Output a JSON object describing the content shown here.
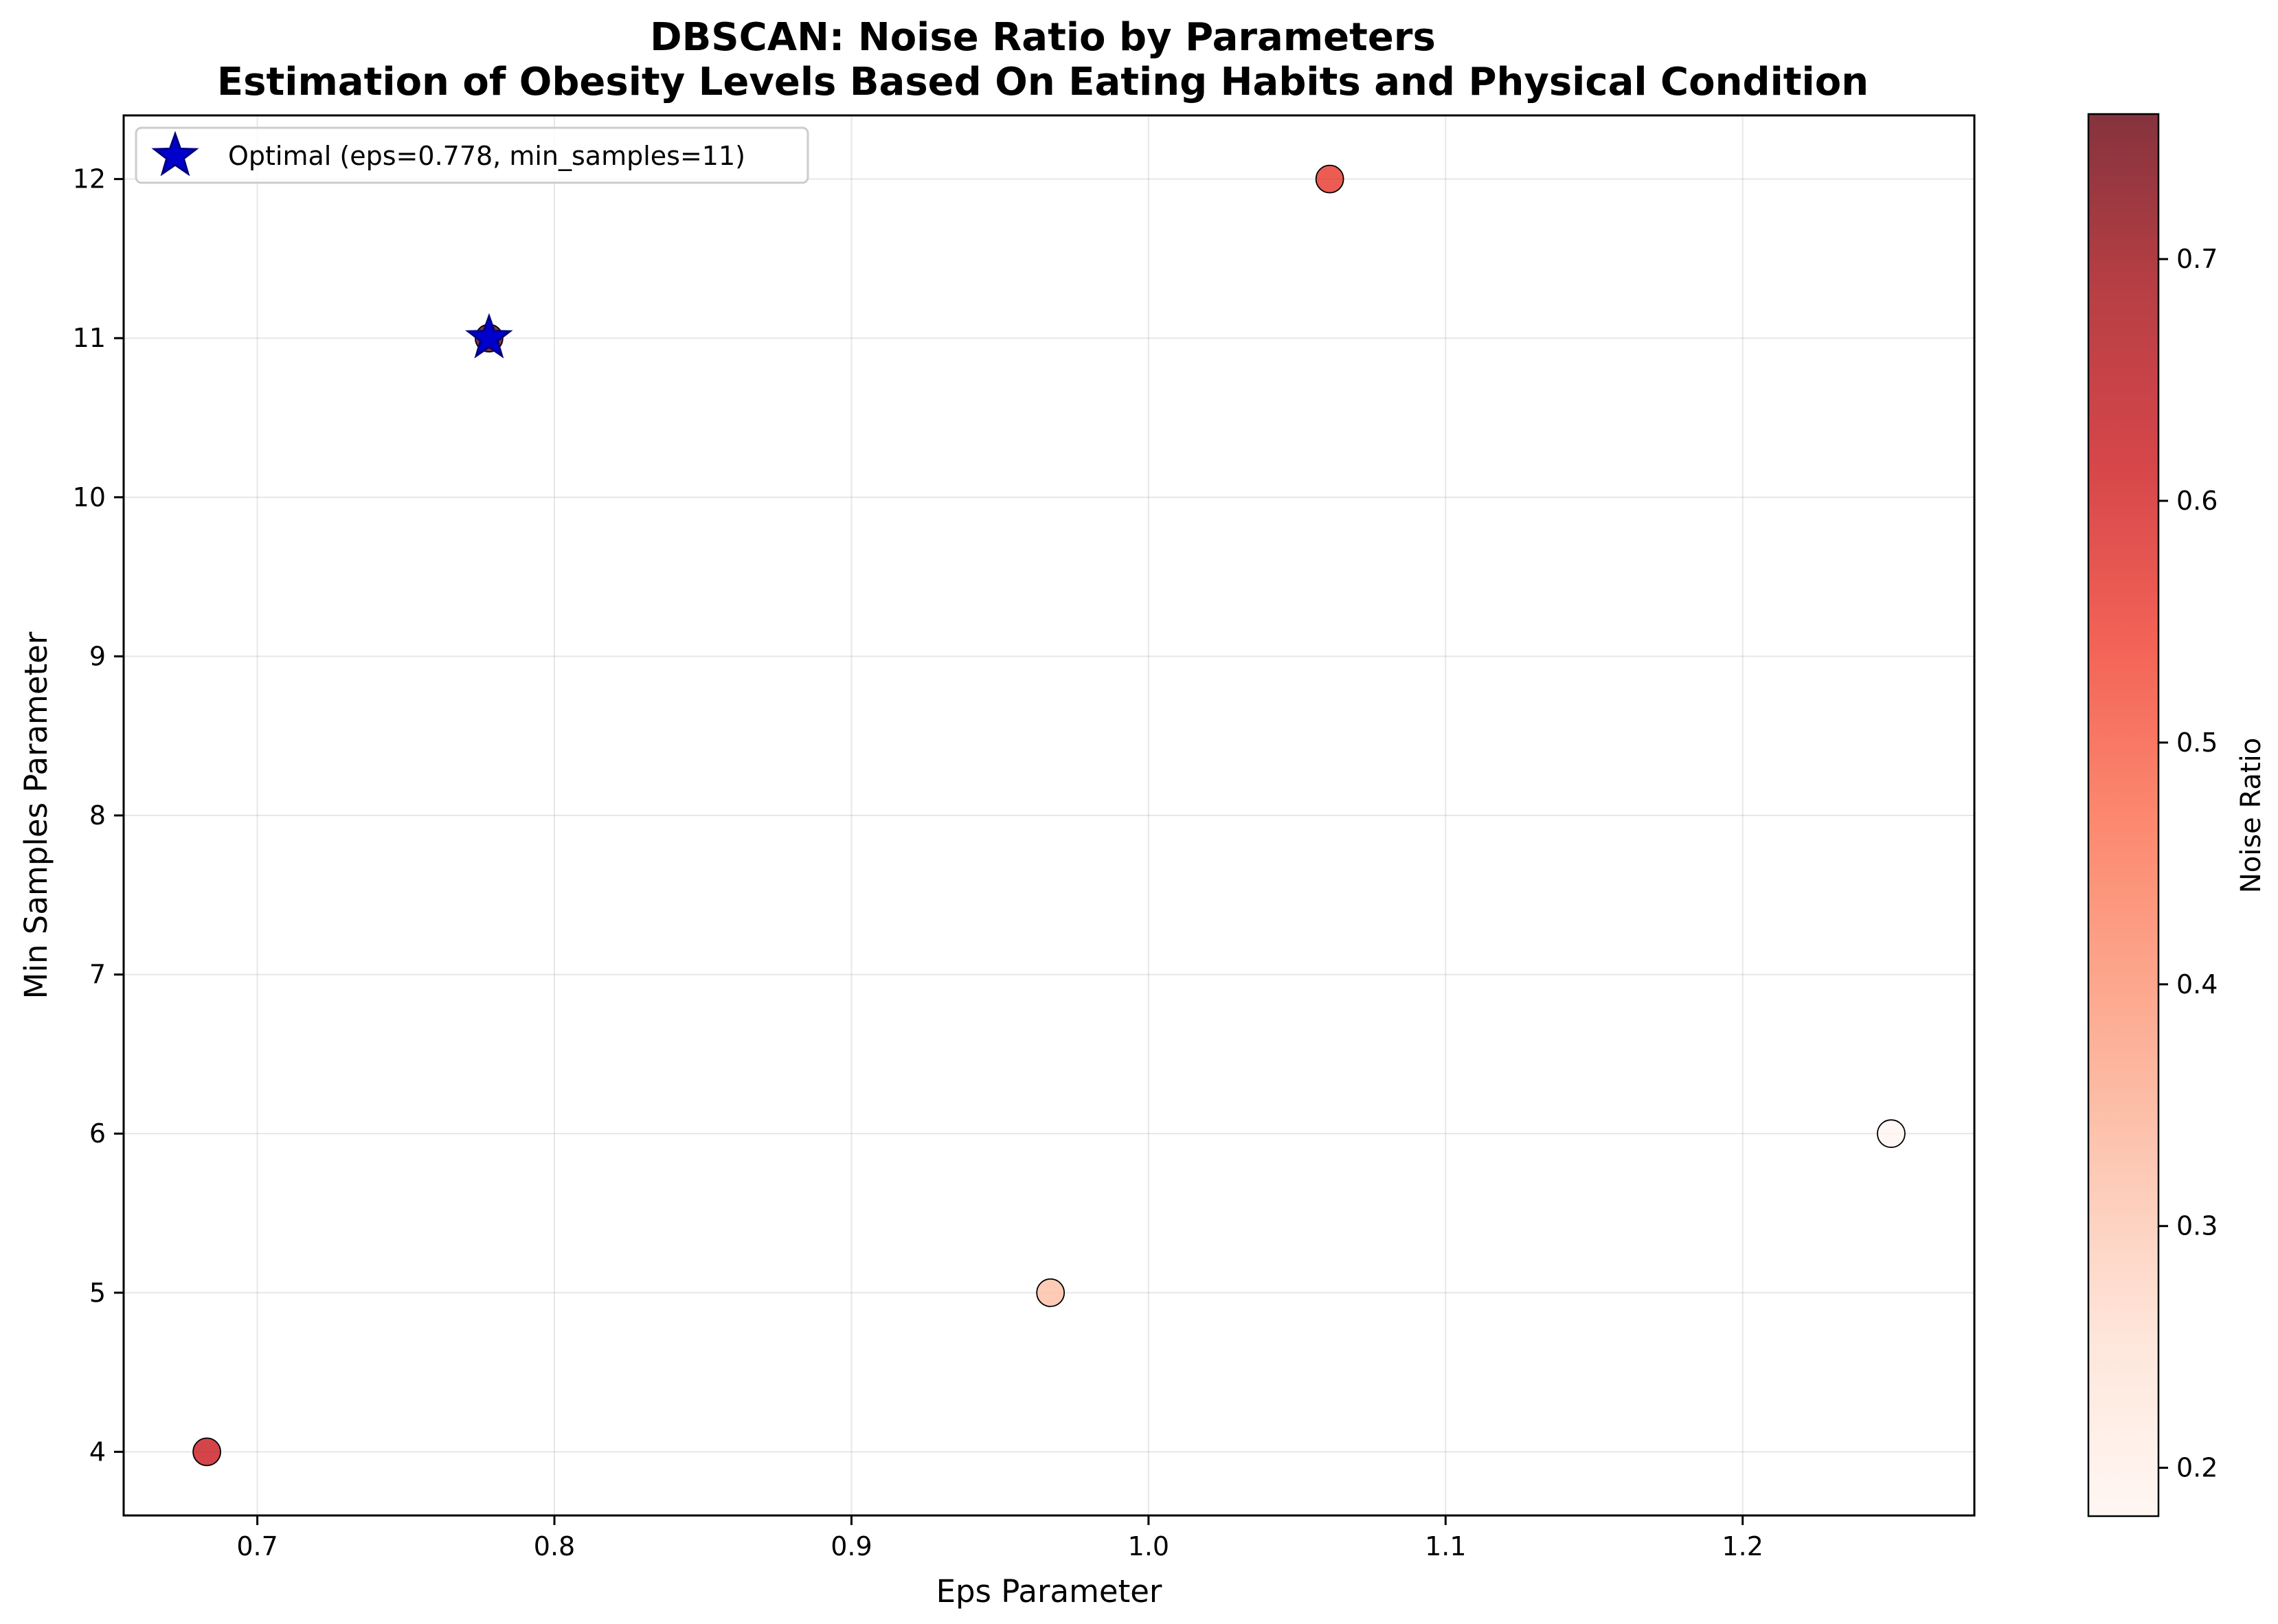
{
  "chart_data": {
    "type": "scatter",
    "title": "DBSCAN: Noise Ratio by Parameters",
    "subtitle": "Estimation of Obesity Levels Based On Eating Habits and Physical Condition",
    "xlabel": "Eps Parameter",
    "ylabel": "Min Samples Parameter",
    "xlim": [
      0.655,
      1.278
    ],
    "ylim": [
      3.6,
      12.4
    ],
    "x_ticks": [
      0.7,
      0.8,
      0.9,
      1.0,
      1.1,
      1.2
    ],
    "x_tick_labels": [
      "0.7",
      "0.8",
      "0.9",
      "1.0",
      "1.1",
      "1.2"
    ],
    "y_ticks": [
      4,
      5,
      6,
      7,
      8,
      9,
      10,
      11,
      12
    ],
    "y_tick_labels": [
      "4",
      "5",
      "6",
      "7",
      "8",
      "9",
      "10",
      "11",
      "12"
    ],
    "grid": true,
    "points": [
      {
        "eps": 0.683,
        "min_samples": 4,
        "noise_ratio": 0.62
      },
      {
        "eps": 0.778,
        "min_samples": 11,
        "noise_ratio": 0.76
      },
      {
        "eps": 0.967,
        "min_samples": 5,
        "noise_ratio": 0.32
      },
      {
        "eps": 1.061,
        "min_samples": 12,
        "noise_ratio": 0.56
      },
      {
        "eps": 1.25,
        "min_samples": 6,
        "noise_ratio": 0.18
      }
    ],
    "optimal": {
      "eps": 0.778,
      "min_samples": 11,
      "color": "#0000cc"
    },
    "legend": {
      "label": "Optimal (eps=0.778, min_samples=11)",
      "placement": "top-left"
    },
    "colorbar": {
      "label": "Noise Ratio",
      "range": [
        0.18,
        0.76
      ],
      "ticks": [
        0.2,
        0.3,
        0.4,
        0.5,
        0.6,
        0.7
      ],
      "tick_labels": [
        "0.2",
        "0.3",
        "0.4",
        "0.5",
        "0.6",
        "0.7"
      ],
      "colormap": "Reds"
    }
  }
}
